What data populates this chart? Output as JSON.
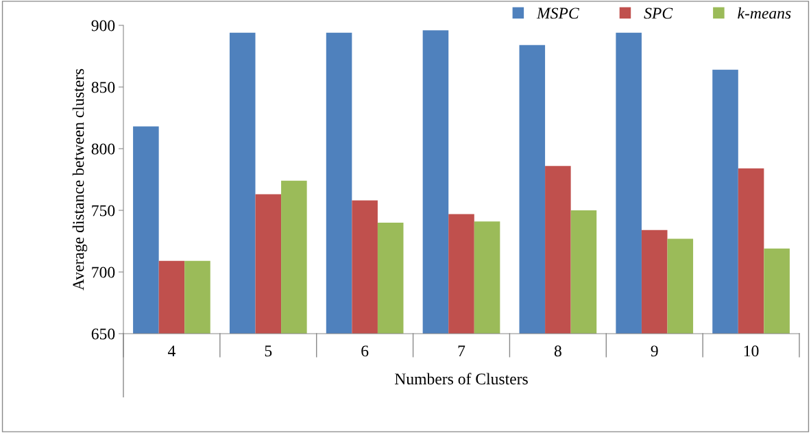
{
  "chart_data": {
    "type": "bar",
    "xlabel": "Numbers of Clusters",
    "ylabel": "Average distance between clusters",
    "categories": [
      "4",
      "5",
      "6",
      "7",
      "8",
      "9",
      "10"
    ],
    "series": [
      {
        "name": "MSPC",
        "color": "#4f81bd",
        "values": [
          818,
          894,
          894,
          896,
          884,
          894,
          864
        ]
      },
      {
        "name": "SPC",
        "color": "#c0504d",
        "values": [
          709,
          763,
          758,
          747,
          786,
          734,
          784
        ]
      },
      {
        "name": "k-means",
        "color": "#9bbb59",
        "values": [
          709,
          774,
          740,
          741,
          750,
          727,
          719
        ]
      }
    ],
    "ylim": [
      650,
      900
    ],
    "yticks": [
      650,
      700,
      750,
      800,
      850,
      900
    ],
    "grid": false,
    "legend": "top right"
  }
}
